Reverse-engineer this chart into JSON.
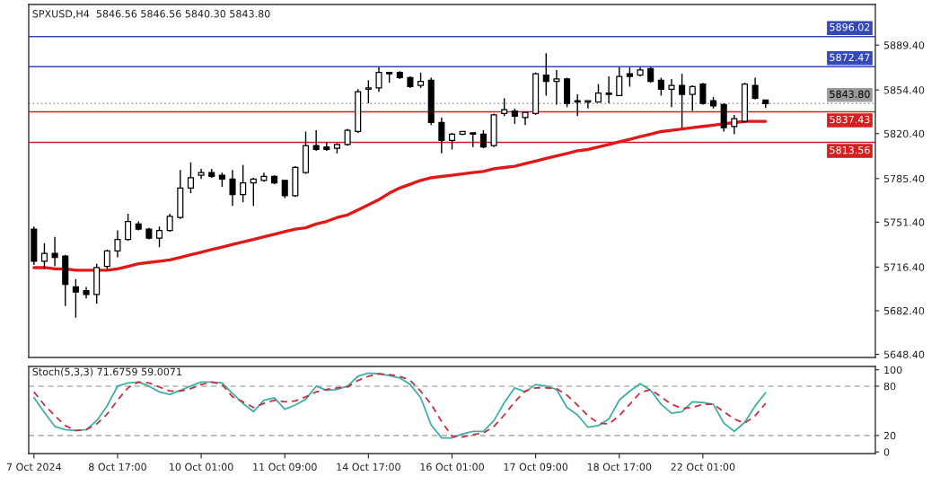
{
  "chart_data": [
    {
      "type": "candlestick",
      "title": "SPXUSD,H4  5846.56 5846.56 5840.30 5843.80",
      "categories": [
        null,
        null,
        null,
        null,
        null,
        null,
        null,
        null,
        null,
        null,
        null,
        null,
        null,
        null,
        null,
        null,
        null,
        null,
        null,
        null,
        null,
        null,
        null,
        null,
        null,
        null,
        null,
        null,
        null,
        null,
        null,
        null,
        null,
        null,
        null,
        null,
        null,
        null,
        null,
        null,
        null,
        null,
        null,
        null,
        null,
        null,
        null,
        null,
        null,
        null,
        null,
        null,
        null,
        null,
        null,
        null,
        null,
        null,
        null,
        null,
        null,
        null,
        null,
        null,
        null,
        null,
        null,
        null,
        null,
        null,
        null,
        null,
        null,
        null,
        null,
        null,
        null,
        null,
        null,
        null,
        null
      ],
      "ohlc": [
        [
          5746,
          5748,
          5718,
          5721
        ],
        [
          5721,
          5735,
          5715,
          5727
        ],
        [
          5727,
          5740,
          5717,
          5724
        ],
        [
          5725,
          5726,
          5686,
          5703
        ],
        [
          5701,
          5707,
          5677,
          5697
        ],
        [
          5698,
          5701,
          5692,
          5695
        ],
        [
          5695,
          5719,
          5688,
          5716
        ],
        [
          5717,
          5730,
          5715,
          5729
        ],
        [
          5729,
          5745,
          5724,
          5738
        ],
        [
          5738,
          5758,
          5737,
          5752
        ],
        [
          5750,
          5752,
          5745,
          5746
        ],
        [
          5746,
          5747,
          5738,
          5739
        ],
        [
          5739,
          5748,
          5732,
          5745
        ],
        [
          5745,
          5758,
          5744,
          5756
        ],
        [
          5755,
          5792,
          5754,
          5778
        ],
        [
          5778,
          5798,
          5774,
          5786
        ],
        [
          5788,
          5793,
          5785,
          5790
        ],
        [
          5790,
          5793,
          5786,
          5787
        ],
        [
          5788,
          5790,
          5779,
          5785
        ],
        [
          5785,
          5792,
          5764,
          5773
        ],
        [
          5773,
          5796,
          5767,
          5782
        ],
        [
          5782,
          5786,
          5764,
          5785
        ],
        [
          5784,
          5790,
          5783,
          5787
        ],
        [
          5787,
          5788,
          5781,
          5782
        ],
        [
          5784,
          5784,
          5770,
          5772
        ],
        [
          5772,
          5795,
          5771,
          5794
        ],
        [
          5790,
          5822,
          5789,
          5811
        ],
        [
          5811,
          5823,
          5807,
          5808
        ],
        [
          5810,
          5814,
          5807,
          5808
        ],
        [
          5809,
          5813,
          5805,
          5812
        ],
        [
          5812,
          5824,
          5811,
          5823
        ],
        [
          5822,
          5855,
          5821,
          5853
        ],
        [
          5855,
          5862,
          5844,
          5856
        ],
        [
          5856,
          5872,
          5853,
          5868
        ],
        [
          5868,
          5868,
          5860,
          5867
        ],
        [
          5868,
          5869,
          5863,
          5864
        ],
        [
          5864,
          5865,
          5856,
          5857
        ],
        [
          5858,
          5868,
          5856,
          5861
        ],
        [
          5862,
          5864,
          5827,
          5829
        ],
        [
          5829,
          5833,
          5805,
          5815
        ],
        [
          5815,
          5821,
          5808,
          5820
        ],
        [
          5820,
          5822,
          5819,
          5822
        ],
        [
          5821,
          5821,
          5810,
          5820
        ],
        [
          5820,
          5823,
          5809,
          5810
        ],
        [
          5811,
          5836,
          5810,
          5835
        ],
        [
          5836,
          5848,
          5834,
          5839
        ],
        [
          5838,
          5840,
          5828,
          5834
        ],
        [
          5833,
          5837,
          5827,
          5837
        ],
        [
          5836,
          5868,
          5835,
          5867
        ],
        [
          5866,
          5883,
          5850,
          5861
        ],
        [
          5861,
          5870,
          5843,
          5863
        ],
        [
          5863,
          5864,
          5841,
          5844
        ],
        [
          5846,
          5851,
          5834,
          5845
        ],
        [
          5845,
          5846,
          5840,
          5846
        ],
        [
          5845,
          5859,
          5845,
          5852
        ],
        [
          5852,
          5865,
          5844,
          5851
        ],
        [
          5850,
          5872,
          5850,
          5865
        ],
        [
          5867,
          5872,
          5857,
          5865
        ],
        [
          5866,
          5872,
          5865,
          5870
        ],
        [
          5871,
          5872,
          5860,
          5861
        ],
        [
          5862,
          5864,
          5850,
          5855
        ],
        [
          5855,
          5863,
          5841,
          5858
        ],
        [
          5858,
          5867,
          5825,
          5851
        ],
        [
          5851,
          5858,
          5838,
          5857
        ],
        [
          5859,
          5860,
          5843,
          5844
        ],
        [
          5846,
          5849,
          5840,
          5842
        ],
        [
          5843,
          5844,
          5822,
          5825
        ],
        [
          5826,
          5835,
          5820,
          5832
        ],
        [
          5830,
          5860,
          5829,
          5859
        ],
        [
          5858,
          5864,
          5847,
          5848
        ],
        [
          5846.56,
          5846.56,
          5840.3,
          5843.8
        ],
        null,
        null,
        null,
        null,
        null,
        null,
        null,
        null,
        null,
        null
      ],
      "series": [
        {
          "type": "line",
          "color": "#e01818",
          "values": [
            5716,
            5716,
            5715,
            5715,
            5714,
            5714,
            5714,
            5714,
            5715,
            5717,
            5719,
            5720,
            5721,
            5722,
            5724,
            5726,
            5728,
            5730,
            5732,
            5734,
            5736,
            5738,
            5740,
            5742,
            5744,
            5746,
            5747,
            5750,
            5752,
            5755,
            5757,
            5761,
            5765,
            5769,
            5774,
            5778,
            5781,
            5784,
            5786,
            5787,
            5788,
            5789,
            5790,
            5791,
            5793,
            5794,
            5795,
            5797,
            5799,
            5801,
            5803,
            5805,
            5807,
            5808,
            5810,
            5812,
            5814,
            5816,
            5818,
            5820,
            5822,
            5823,
            5824,
            5825,
            5826,
            5827,
            5828,
            5829,
            5830,
            5830,
            5830,
            null,
            null,
            null,
            null,
            null,
            null,
            null,
            null,
            null,
            null
          ]
        }
      ],
      "ylim": [
        5646,
        5921
      ],
      "yticks": [
        {
          "value": 5648.4,
          "label": "5648.40"
        },
        {
          "value": 5682.4,
          "label": "5682.40"
        },
        {
          "value": 5716.4,
          "label": "5716.40"
        },
        {
          "value": 5751.4,
          "label": "5751.40"
        },
        {
          "value": 5785.4,
          "label": "5785.40"
        },
        {
          "value": 5820.4,
          "label": "5820.40"
        },
        {
          "value": 5854.4,
          "label": "5854.40"
        },
        {
          "value": 5889.4,
          "label": "5889.40"
        }
      ],
      "tick_labels": "y",
      "ref_lines": [
        {
          "axis": "y",
          "value": 5896.02,
          "label": "5896.02",
          "color": "#3448b8"
        },
        {
          "axis": "y",
          "value": 5872.47,
          "label": "5872.47",
          "color": "#3448b8"
        },
        {
          "axis": "y",
          "value": 5843.8,
          "label": "5843.80",
          "color": "#9a9a9a",
          "line_style": "dotted"
        },
        {
          "axis": "y",
          "value": 5837.43,
          "label": "5837.43",
          "color": "#d42020"
        },
        {
          "axis": "y",
          "value": 5813.56,
          "label": "5813.56",
          "color": "#d42020"
        }
      ]
    },
    {
      "type": "line",
      "title": "Stoch(5,3,3) 71.6759 59.0071",
      "categories": [
        "7 Oct 2024",
        null,
        null,
        null,
        null,
        null,
        null,
        null,
        "8 Oct 17:00",
        null,
        null,
        null,
        null,
        null,
        null,
        null,
        "10 Oct 01:00",
        null,
        null,
        null,
        null,
        null,
        null,
        null,
        "11 Oct 09:00",
        null,
        null,
        null,
        null,
        null,
        null,
        null,
        "14 Oct 17:00",
        null,
        null,
        null,
        null,
        null,
        null,
        null,
        "16 Oct 01:00",
        null,
        null,
        null,
        null,
        null,
        null,
        null,
        "17 Oct 09:00",
        null,
        null,
        null,
        null,
        null,
        null,
        null,
        "18 Oct 17:00",
        null,
        null,
        null,
        null,
        null,
        null,
        null,
        "22 Oct 01:00",
        null,
        null,
        null,
        null,
        null,
        null,
        null,
        null,
        null,
        null,
        null,
        null,
        null,
        null,
        null,
        null
      ],
      "series": [
        {
          "color": "#3fb0a6",
          "line_style": "solid",
          "values": [
            66,
            48,
            31,
            27,
            26,
            27,
            38,
            56,
            80,
            84,
            85,
            80,
            73,
            70,
            75,
            80,
            85,
            85,
            84,
            71,
            59,
            49,
            63,
            66,
            52,
            57,
            64,
            80,
            75,
            76,
            80,
            92,
            96,
            95,
            93,
            90,
            82,
            66,
            33,
            17,
            17,
            22,
            25,
            25,
            38,
            60,
            78,
            73,
            82,
            80,
            76,
            54,
            45,
            30,
            32,
            40,
            63,
            74,
            83,
            75,
            58,
            47,
            49,
            61,
            60,
            58,
            35,
            25,
            36,
            56,
            72,
            null,
            null,
            null,
            null,
            null,
            null,
            null,
            null,
            null,
            null
          ]
        },
        {
          "color": "#c83040",
          "line_style": "dashed",
          "values": [
            73,
            57,
            44,
            32,
            26,
            27,
            34,
            46,
            63,
            78,
            85,
            84,
            79,
            74,
            74,
            77,
            82,
            85,
            82,
            67,
            61,
            54,
            59,
            63,
            61,
            62,
            67,
            73,
            76,
            78,
            79,
            87,
            92,
            95,
            94,
            92,
            87,
            74,
            58,
            37,
            19,
            18,
            21,
            23,
            31,
            45,
            61,
            74,
            78,
            78,
            77,
            69,
            57,
            44,
            35,
            34,
            44,
            58,
            72,
            76,
            67,
            58,
            53,
            54,
            58,
            58,
            49,
            40,
            35,
            44,
            59,
            null,
            null,
            null,
            null,
            null,
            null,
            null,
            null,
            null,
            null
          ]
        }
      ],
      "ylim": [
        -2,
        104
      ],
      "yticks": [
        0,
        20,
        80,
        100
      ],
      "ref_lines": [
        {
          "axis": "y",
          "value": 80,
          "color": "#b4b4b4",
          "line_style": "dashed"
        },
        {
          "axis": "y",
          "value": 20,
          "color": "#b4b4b4",
          "line_style": "dashed"
        }
      ]
    }
  ]
}
